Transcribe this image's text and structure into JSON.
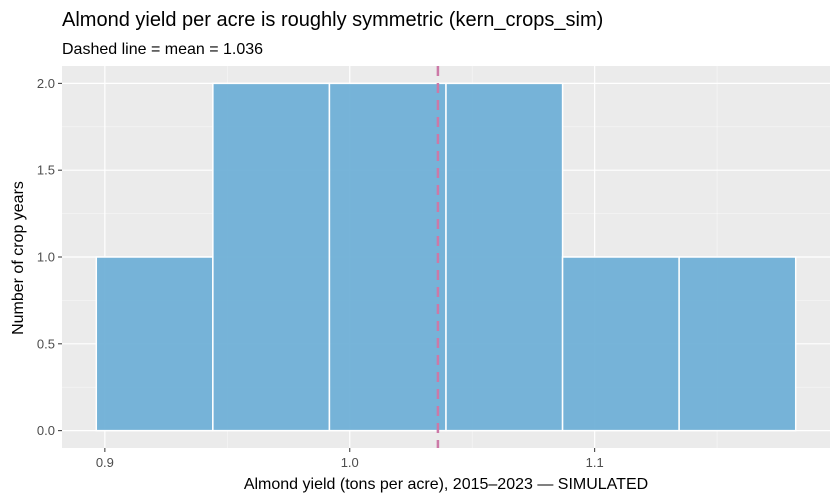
{
  "chart_data": {
    "type": "bar",
    "title": "Almond yield per acre is roughly symmetric (kern_crops_sim)",
    "subtitle": "Dashed line = mean = 1.036",
    "xlabel": "Almond yield (tons per acre), 2015–2023 — SIMULATED",
    "ylabel": "Number of crop years",
    "bins": [
      {
        "x0": 0.8965,
        "x1": 0.9441,
        "count": 1
      },
      {
        "x0": 0.9441,
        "x1": 0.9917,
        "count": 2
      },
      {
        "x0": 0.9917,
        "x1": 1.0393,
        "count": 2
      },
      {
        "x0": 1.0393,
        "x1": 1.0869,
        "count": 2
      },
      {
        "x0": 1.0869,
        "x1": 1.1345,
        "count": 1
      },
      {
        "x0": 1.1345,
        "x1": 1.1821,
        "count": 1
      }
    ],
    "mean": 1.036,
    "xlim": [
      0.8825,
      1.1961
    ],
    "ylim": [
      -0.1,
      2.1
    ],
    "x_ticks": [
      0.9,
      1.0,
      1.1
    ],
    "x_tick_labels": [
      "0.9",
      "1.0",
      "1.1"
    ],
    "y_ticks": [
      0,
      0.5,
      1,
      1.5,
      2
    ],
    "y_tick_labels": [
      "0.0",
      "0.5",
      "1.0",
      "1.5",
      "2.0"
    ],
    "grid": true,
    "colors": {
      "bar_fill": "#6baed6",
      "bar_stroke": "#ffffff",
      "mean_line": "#cc79a7",
      "panel_bg": "#ebebeb",
      "grid_major": "#ffffff"
    }
  }
}
